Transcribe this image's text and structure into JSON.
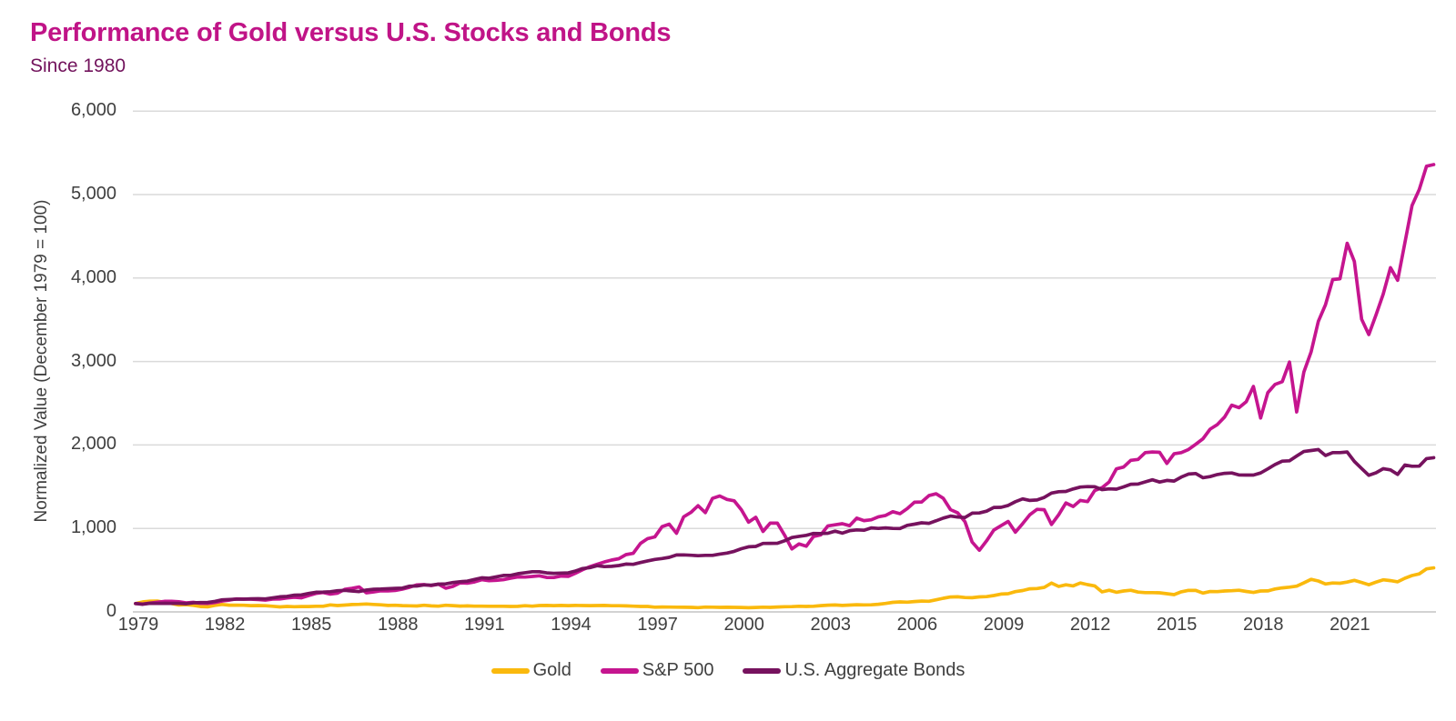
{
  "page": {
    "background": "#ffffff"
  },
  "header": {
    "title": "Performance of Gold versus U.S. Stocks and Bonds",
    "subtitle": "Since 1980",
    "title_color": "#c01487",
    "subtitle_color": "#72135c"
  },
  "chart_data": {
    "type": "line",
    "title": "Performance of Gold versus U.S. Stocks and Bonds",
    "subtitle": "Since 1980",
    "ylabel": "Normalized Value (December 1979 = 100)",
    "xlabel": "",
    "ylim": [
      0,
      6000
    ],
    "y_ticks": [
      0,
      1000,
      2000,
      3000,
      4000,
      5000,
      6000
    ],
    "y_tick_labels": [
      "0",
      "1,000",
      "2,000",
      "3,000",
      "4,000",
      "5,000",
      "6,000"
    ],
    "x_tick_years": [
      1979,
      1982,
      1985,
      1988,
      1991,
      1994,
      1997,
      2000,
      2003,
      2006,
      2009,
      2012,
      2015,
      2018,
      2021
    ],
    "x_tick_labels": [
      "1979",
      "1982",
      "1985",
      "1988",
      "1991",
      "1994",
      "1997",
      "2000",
      "2003",
      "2006",
      "2009",
      "2012",
      "2015",
      "2018",
      "2021"
    ],
    "x_range_years": [
      1979.92,
      2024.92
    ],
    "grid": "horizontal",
    "grid_color": "#dadada",
    "baseline_color": "#d2d2d2",
    "axis_text_color": "#3f3f3f",
    "legend_position": "bottom-center",
    "sample_interval": "quarterly",
    "start_label": "Dec 1979",
    "series": [
      {
        "name": "Gold",
        "color": "#fab90d",
        "start_value": 100,
        "quarterly_by_year": {
          "1980": [
            120,
            128,
            130,
            115
          ],
          "1981": [
            100,
            83,
            87,
            78
          ],
          "1982": [
            64,
            61,
            78,
            89
          ],
          "1983": [
            81,
            81,
            79,
            75
          ],
          "1984": [
            76,
            74,
            67,
            60
          ],
          "1985": [
            65,
            62,
            64,
            64
          ],
          "1986": [
            67,
            67,
            84,
            76
          ],
          "1987": [
            82,
            88,
            90,
            95
          ],
          "1988": [
            89,
            85,
            77,
            80
          ],
          "1989": [
            75,
            73,
            71,
            79
          ],
          "1990": [
            72,
            69,
            79,
            75
          ],
          "1991": [
            70,
            72,
            69,
            69
          ],
          "1992": [
            67,
            67,
            68,
            65
          ],
          "1993": [
            66,
            74,
            69,
            76
          ],
          "1994": [
            77,
            75,
            77,
            75
          ],
          "1995": [
            77,
            76,
            75,
            76
          ],
          "1996": [
            77,
            74,
            74,
            72
          ],
          "1997": [
            69,
            65,
            65,
            57
          ],
          "1998": [
            59,
            58,
            57,
            56
          ],
          "1999": [
            55,
            51,
            58,
            57
          ],
          "2000": [
            54,
            56,
            54,
            53
          ],
          "2001": [
            50,
            53,
            57,
            54
          ],
          "2002": [
            59,
            62,
            63,
            68
          ],
          "2003": [
            65,
            68,
            75,
            81
          ],
          "2004": [
            83,
            77,
            82,
            86
          ],
          "2005": [
            84,
            85,
            92,
            101
          ],
          "2006": [
            114,
            120,
            117,
            124
          ],
          "2007": [
            130,
            127,
            145,
            163
          ],
          "2008": [
            179,
            181,
            172,
            170
          ],
          "2009": [
            180,
            183,
            196,
            214
          ],
          "2010": [
            218,
            243,
            256,
            277
          ],
          "2011": [
            280,
            293,
            345,
            305
          ],
          "2012": [
            325,
            312,
            346,
            327
          ],
          "2013": [
            312,
            240,
            259,
            235
          ],
          "2014": [
            251,
            259,
            238,
            231
          ],
          "2015": [
            231,
            229,
            218,
            207
          ],
          "2016": [
            241,
            258,
            257,
            225
          ],
          "2017": [
            244,
            243,
            251,
            254
          ],
          "2018": [
            259,
            245,
            233,
            250
          ],
          "2019": [
            252,
            275,
            288,
            296
          ],
          "2020": [
            308,
            348,
            390,
            370
          ],
          "2021": [
            334,
            346,
            343,
            357
          ],
          "2022": [
            378,
            353,
            326,
            356
          ],
          "2023": [
            385,
            375,
            361,
            403
          ],
          "2024": [
            436,
            455,
            515,
            527
          ]
        }
      },
      {
        "name": "S&P 500",
        "color": "#c5158f",
        "start_value": 100,
        "quarterly_by_year": {
          "1980": [
            95,
            106,
            116,
            126
          ],
          "1981": [
            126,
            122,
            108,
            114
          ],
          "1982": [
            104,
            102,
            112,
            130
          ],
          "1983": [
            142,
            156,
            154,
            153
          ],
          "1984": [
            148,
            142,
            154,
            155
          ],
          "1985": [
            167,
            175,
            169,
            196
          ],
          "1986": [
            221,
            232,
            214,
            224
          ],
          "1987": [
            270,
            282,
            298,
            229
          ],
          "1988": [
            240,
            253,
            252,
            257
          ],
          "1989": [
            273,
            295,
            324,
            327
          ],
          "1990": [
            315,
            332,
            284,
            306
          ],
          "1991": [
            348,
            344,
            359,
            386
          ],
          "1992": [
            374,
            378,
            387,
            404
          ],
          "1993": [
            419,
            417,
            425,
            432
          ],
          "1994": [
            413,
            412,
            429,
            426
          ],
          "1995": [
            464,
            505,
            542,
            571
          ],
          "1996": [
            598,
            621,
            637,
            686
          ],
          "1997": [
            702,
            820,
            878,
            899
          ],
          "1998": [
            1021,
            1051,
            942,
            1139
          ],
          "1999": [
            1192,
            1272,
            1189,
            1361
          ],
          "2000": [
            1389,
            1348,
            1331,
            1223
          ],
          "2001": [
            1075,
            1134,
            964,
            1064
          ],
          "2002": [
            1063,
            917,
            755,
            815
          ],
          "2003": [
            786,
            903,
            923,
            1030
          ],
          "2004": [
            1044,
            1057,
            1033,
            1123
          ],
          "2005": [
            1094,
            1104,
            1139,
            1156
          ],
          "2006": [
            1200,
            1177,
            1238,
            1314
          ],
          "2007": [
            1317,
            1393,
            1415,
            1361
          ],
          "2008": [
            1226,
            1186,
            1081,
            837
          ],
          "2009": [
            739,
            852,
            980,
            1033
          ],
          "2010": [
            1084,
            955,
            1058,
            1165
          ],
          "2011": [
            1229,
            1224,
            1048,
            1165
          ],
          "2012": [
            1305,
            1262,
            1335,
            1321
          ],
          "2013": [
            1454,
            1488,
            1558,
            1713
          ],
          "2014": [
            1735,
            1816,
            1827,
            1908
          ],
          "2015": [
            1916,
            1912,
            1779,
            1894
          ],
          "2016": [
            1908,
            1945,
            2009,
            2074
          ],
          "2017": [
            2189,
            2245,
            2334,
            2477
          ],
          "2018": [
            2447,
            2519,
            2700,
            2323
          ],
          "2019": [
            2626,
            2726,
            2758,
            2993
          ],
          "2020": [
            2395,
            2873,
            3116,
            3480
          ],
          "2021": [
            3681,
            3982,
            3991,
            4416
          ],
          "2022": [
            4198,
            3507,
            3322,
            3558
          ],
          "2023": [
            3807,
            4124,
            3973,
            4420
          ],
          "2024": [
            4869,
            5060,
            5340,
            5360
          ]
        }
      },
      {
        "name": "U.S. Aggregate Bonds",
        "color": "#76125e",
        "start_value": 100,
        "quarterly_by_year": {
          "1980": [
            91,
            103,
            101,
            103
          ],
          "1981": [
            102,
            102,
            98,
            109
          ],
          "1982": [
            112,
            113,
            126,
            145
          ],
          "1983": [
            149,
            152,
            153,
            157
          ],
          "1984": [
            158,
            156,
            168,
            181
          ],
          "1985": [
            185,
            200,
            204,
            221
          ],
          "1986": [
            235,
            237,
            242,
            254
          ],
          "1987": [
            258,
            251,
            244,
            261
          ],
          "1988": [
            271,
            273,
            278,
            282
          ],
          "1989": [
            285,
            308,
            311,
            323
          ],
          "1990": [
            320,
            332,
            335,
            352
          ],
          "1991": [
            362,
            368,
            389,
            408
          ],
          "1992": [
            403,
            419,
            437,
            438
          ],
          "1993": [
            457,
            469,
            481,
            481
          ],
          "1994": [
            467,
            462,
            465,
            467
          ],
          "1995": [
            490,
            520,
            530,
            553
          ],
          "1996": [
            543,
            546,
            556,
            573
          ],
          "1997": [
            570,
            591,
            611,
            629
          ],
          "1998": [
            639,
            654,
            682,
            683
          ],
          "1999": [
            679,
            673,
            678,
            678
          ],
          "2000": [
            693,
            705,
            726,
            757
          ],
          "2001": [
            780,
            784,
            820,
            821
          ],
          "2002": [
            822,
            852,
            891,
            905
          ],
          "2003": [
            917,
            940,
            939,
            942
          ],
          "2004": [
            967,
            943,
            973,
            983
          ],
          "2005": [
            978,
            1007,
            1000,
            1007
          ],
          "2006": [
            1000,
            999,
            1037,
            1051
          ],
          "2007": [
            1067,
            1061,
            1092,
            1124
          ],
          "2008": [
            1148,
            1136,
            1131,
            1183
          ],
          "2009": [
            1185,
            1207,
            1252,
            1253
          ],
          "2010": [
            1276,
            1320,
            1354,
            1335
          ],
          "2011": [
            1341,
            1372,
            1424,
            1440
          ],
          "2012": [
            1443,
            1473,
            1496,
            1501
          ],
          "2013": [
            1500,
            1465,
            1474,
            1471
          ],
          "2014": [
            1498,
            1529,
            1532,
            1558
          ],
          "2015": [
            1583,
            1556,
            1575,
            1567
          ],
          "2016": [
            1615,
            1651,
            1658,
            1608
          ],
          "2017": [
            1621,
            1646,
            1660,
            1665
          ],
          "2018": [
            1641,
            1639,
            1639,
            1665
          ],
          "2019": [
            1713,
            1766,
            1806,
            1810
          ],
          "2020": [
            1867,
            1922,
            1934,
            1946
          ],
          "2021": [
            1874,
            1908,
            1909,
            1916
          ],
          "2022": [
            1803,
            1718,
            1636,
            1667
          ],
          "2023": [
            1716,
            1702,
            1647,
            1759
          ],
          "2024": [
            1745,
            1746,
            1837,
            1848
          ]
        }
      }
    ]
  }
}
